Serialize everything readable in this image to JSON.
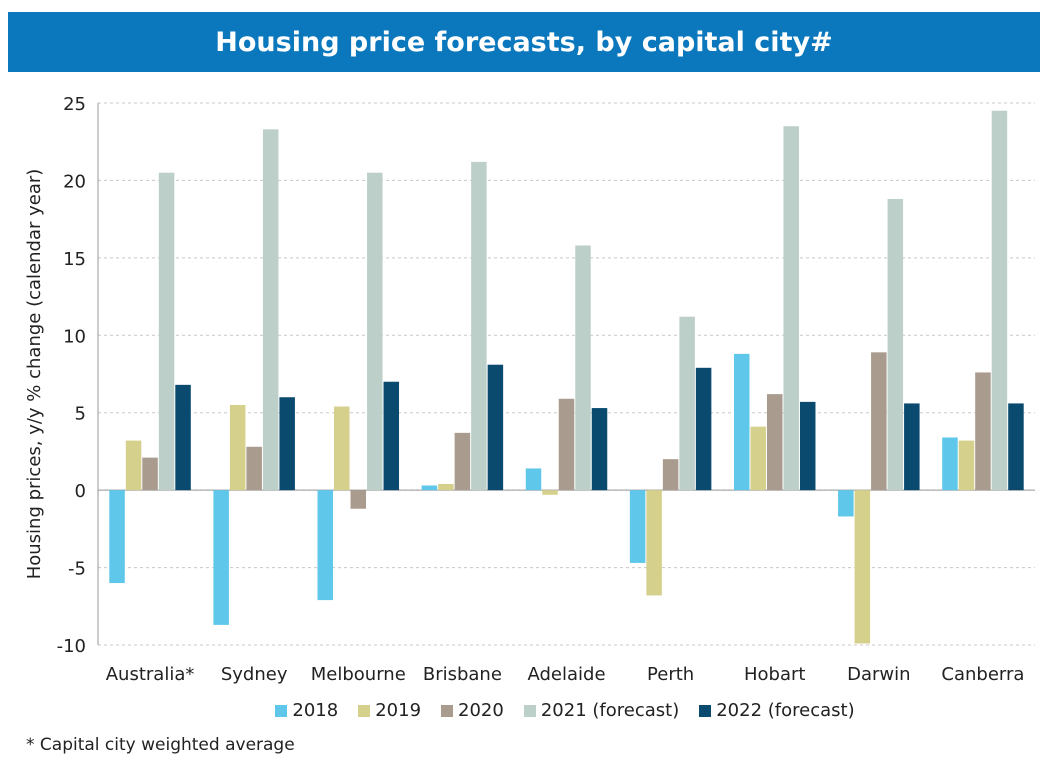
{
  "chart_data": {
    "type": "bar",
    "title": "Housing price forecasts, by capital city#",
    "ylabel": "Housing prices, y/y % change (calendar year)",
    "xlabel": "",
    "ylim": [
      -10,
      25
    ],
    "yticks": [
      -10,
      -5,
      0,
      5,
      10,
      15,
      20,
      25
    ],
    "grid": true,
    "legend_position": "bottom",
    "categories": [
      "Australia*",
      "Sydney",
      "Melbourne",
      "Brisbane",
      "Adelaide",
      "Perth",
      "Hobart",
      "Darwin",
      "Canberra"
    ],
    "series": [
      {
        "name": "2018",
        "color": "#5ec7ea",
        "values": [
          -6.0,
          -8.7,
          -7.1,
          0.3,
          1.4,
          -4.7,
          8.8,
          -1.7,
          3.4
        ]
      },
      {
        "name": "2019",
        "color": "#d5d08c",
        "values": [
          3.2,
          5.5,
          5.4,
          0.4,
          -0.3,
          -6.8,
          4.1,
          -9.9,
          3.2
        ]
      },
      {
        "name": "2020",
        "color": "#a99b8d",
        "values": [
          2.1,
          2.8,
          -1.2,
          3.7,
          5.9,
          2.0,
          6.2,
          8.9,
          7.6
        ]
      },
      {
        "name": "2021 (forecast)",
        "color": "#bcd0c9",
        "values": [
          20.5,
          23.3,
          20.5,
          21.2,
          15.8,
          11.2,
          23.5,
          18.8,
          24.5
        ]
      },
      {
        "name": "2022 (forecast)",
        "color": "#0a4a6e",
        "values": [
          6.8,
          6.0,
          7.0,
          8.1,
          5.3,
          7.9,
          5.7,
          5.6,
          5.6
        ]
      }
    ],
    "footnote": "* Capital city weighted average"
  }
}
